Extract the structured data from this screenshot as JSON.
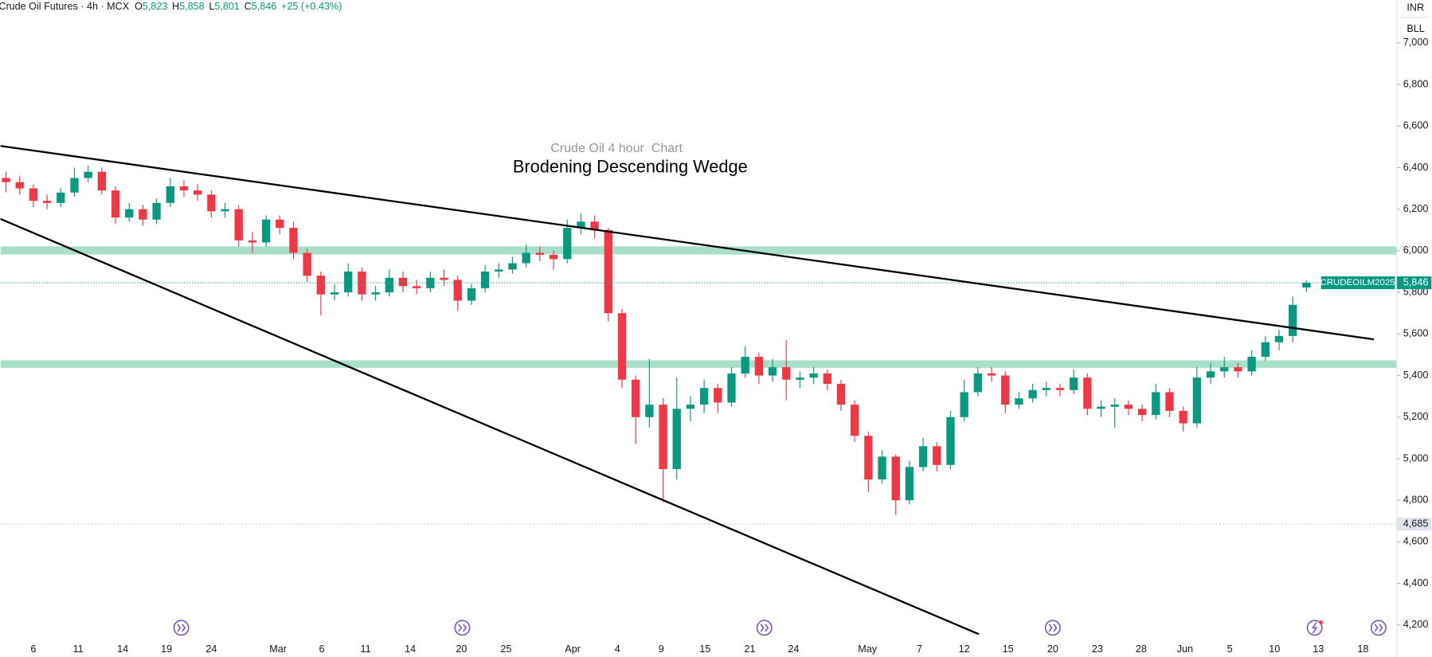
{
  "header": {
    "symbol": "Crude Oil Futures · 4h · MCX",
    "ohlc": [
      {
        "key": "O",
        "value": "5,823"
      },
      {
        "key": "H",
        "value": "5,858"
      },
      {
        "key": "L",
        "value": "5,801"
      },
      {
        "key": "C",
        "value": "5,846"
      }
    ],
    "change": "+25 (+0.43%)",
    "currency": "INR",
    "unit": "BLL"
  },
  "chart_data": {
    "type": "candlestick",
    "subtitle": "Crude Oil 4 hour  Chart",
    "title": "Brodening Descending Wedge",
    "up_color": "#089981",
    "down_color": "#f23645",
    "xlim": [
      -0.4,
      101.6
    ],
    "ylim": [
      4134,
      7206
    ],
    "yticks": [
      {
        "value": 4200,
        "label": "4,200"
      },
      {
        "value": 4400,
        "label": "4,400"
      },
      {
        "value": 4600,
        "label": "4,600"
      },
      {
        "value": 4800,
        "label": "4,800"
      },
      {
        "value": 5000,
        "label": "5,000"
      },
      {
        "value": 5200,
        "label": "5,200"
      },
      {
        "value": 5400,
        "label": "5,400"
      },
      {
        "value": 5600,
        "label": "5,600"
      },
      {
        "value": 5800,
        "label": "5,800"
      },
      {
        "value": 6000,
        "label": "6,000"
      },
      {
        "value": 6200,
        "label": "6,200"
      },
      {
        "value": 6400,
        "label": "6,400"
      },
      {
        "value": 6600,
        "label": "6,600"
      },
      {
        "value": 6800,
        "label": "6,800"
      },
      {
        "value": 7000,
        "label": "7,000"
      }
    ],
    "xticks": [
      {
        "value": 2,
        "label": "6"
      },
      {
        "value": 5.27,
        "label": "11"
      },
      {
        "value": 8.53,
        "label": "14"
      },
      {
        "value": 11.73,
        "label": "19"
      },
      {
        "value": 15,
        "label": "24"
      },
      {
        "value": 19.87,
        "label": "Mar"
      },
      {
        "value": 23.07,
        "label": "6"
      },
      {
        "value": 26.27,
        "label": "11"
      },
      {
        "value": 29.53,
        "label": "14"
      },
      {
        "value": 33.27,
        "label": "20"
      },
      {
        "value": 36.53,
        "label": "25"
      },
      {
        "value": 41.4,
        "label": "Apr"
      },
      {
        "value": 44.67,
        "label": "4"
      },
      {
        "value": 47.87,
        "label": "9"
      },
      {
        "value": 51.07,
        "label": "15"
      },
      {
        "value": 54.33,
        "label": "21"
      },
      {
        "value": 57.53,
        "label": "24"
      },
      {
        "value": 62.93,
        "label": "May"
      },
      {
        "value": 66.73,
        "label": "7"
      },
      {
        "value": 70,
        "label": "12"
      },
      {
        "value": 73.2,
        "label": "15"
      },
      {
        "value": 76.47,
        "label": "20"
      },
      {
        "value": 79.73,
        "label": "23"
      },
      {
        "value": 82.93,
        "label": "28"
      },
      {
        "value": 86.13,
        "label": "Jun"
      },
      {
        "value": 89.4,
        "label": "5"
      },
      {
        "value": 92.67,
        "label": "10"
      },
      {
        "value": 95.87,
        "label": "13"
      },
      {
        "value": 99.13,
        "label": "18"
      }
    ],
    "ohlc": [
      [
        6350,
        6380,
        6280,
        6330
      ],
      [
        6330,
        6360,
        6270,
        6300
      ],
      [
        6300,
        6320,
        6210,
        6240
      ],
      [
        6240,
        6270,
        6200,
        6230
      ],
      [
        6230,
        6300,
        6210,
        6280
      ],
      [
        6280,
        6400,
        6260,
        6350
      ],
      [
        6350,
        6410,
        6330,
        6380
      ],
      [
        6380,
        6400,
        6270,
        6290
      ],
      [
        6290,
        6310,
        6130,
        6160
      ],
      [
        6160,
        6230,
        6140,
        6200
      ],
      [
        6200,
        6220,
        6120,
        6150
      ],
      [
        6150,
        6250,
        6130,
        6230
      ],
      [
        6230,
        6350,
        6210,
        6310
      ],
      [
        6310,
        6340,
        6260,
        6290
      ],
      [
        6290,
        6320,
        6240,
        6270
      ],
      [
        6270,
        6290,
        6160,
        6190
      ],
      [
        6190,
        6230,
        6160,
        6200
      ],
      [
        6200,
        6220,
        6020,
        6050
      ],
      [
        6050,
        6090,
        5990,
        6040
      ],
      [
        6040,
        6170,
        6020,
        6150
      ],
      [
        6150,
        6170,
        6080,
        6110
      ],
      [
        6110,
        6140,
        5960,
        5990
      ],
      [
        5990,
        6010,
        5850,
        5880
      ],
      [
        5880,
        5900,
        5690,
        5790
      ],
      [
        5790,
        5840,
        5760,
        5800
      ],
      [
        5800,
        5940,
        5780,
        5900
      ],
      [
        5900,
        5920,
        5760,
        5790
      ],
      [
        5790,
        5830,
        5760,
        5800
      ],
      [
        5800,
        5910,
        5780,
        5870
      ],
      [
        5870,
        5900,
        5800,
        5830
      ],
      [
        5830,
        5860,
        5790,
        5820
      ],
      [
        5820,
        5900,
        5800,
        5870
      ],
      [
        5870,
        5910,
        5830,
        5860
      ],
      [
        5860,
        5880,
        5710,
        5760
      ],
      [
        5760,
        5840,
        5740,
        5820
      ],
      [
        5820,
        5930,
        5800,
        5900
      ],
      [
        5900,
        5940,
        5870,
        5910
      ],
      [
        5910,
        5970,
        5890,
        5940
      ],
      [
        5940,
        6030,
        5920,
        5990
      ],
      [
        5990,
        6020,
        5950,
        5980
      ],
      [
        5980,
        6000,
        5910,
        5960
      ],
      [
        5960,
        6150,
        5940,
        6110
      ],
      [
        6110,
        6180,
        6080,
        6140
      ],
      [
        6140,
        6170,
        6060,
        6100
      ],
      [
        6100,
        6110,
        5660,
        5700
      ],
      [
        5700,
        5720,
        5340,
        5380
      ],
      [
        5380,
        5400,
        5070,
        5200
      ],
      [
        5200,
        5480,
        5150,
        5260
      ],
      [
        5260,
        5290,
        4790,
        4950
      ],
      [
        4950,
        5390,
        4900,
        5240
      ],
      [
        5240,
        5300,
        5180,
        5260
      ],
      [
        5260,
        5380,
        5220,
        5340
      ],
      [
        5340,
        5360,
        5220,
        5270
      ],
      [
        5270,
        5440,
        5250,
        5410
      ],
      [
        5410,
        5540,
        5390,
        5490
      ],
      [
        5490,
        5510,
        5360,
        5400
      ],
      [
        5400,
        5480,
        5370,
        5440
      ],
      [
        5440,
        5570,
        5280,
        5380
      ],
      [
        5380,
        5420,
        5340,
        5390
      ],
      [
        5390,
        5440,
        5360,
        5410
      ],
      [
        5410,
        5430,
        5330,
        5360
      ],
      [
        5360,
        5380,
        5230,
        5260
      ],
      [
        5260,
        5280,
        5080,
        5110
      ],
      [
        5110,
        5130,
        4840,
        4900
      ],
      [
        4900,
        5040,
        4880,
        5010
      ],
      [
        5010,
        5020,
        4730,
        4800
      ],
      [
        4800,
        4990,
        4780,
        4960
      ],
      [
        4960,
        5100,
        4940,
        5060
      ],
      [
        5060,
        5080,
        4940,
        4970
      ],
      [
        4970,
        5230,
        4950,
        5200
      ],
      [
        5200,
        5380,
        5180,
        5320
      ],
      [
        5320,
        5440,
        5300,
        5410
      ],
      [
        5410,
        5440,
        5370,
        5400
      ],
      [
        5400,
        5420,
        5220,
        5260
      ],
      [
        5260,
        5320,
        5240,
        5290
      ],
      [
        5290,
        5360,
        5270,
        5330
      ],
      [
        5330,
        5370,
        5300,
        5340
      ],
      [
        5340,
        5360,
        5300,
        5330
      ],
      [
        5330,
        5430,
        5310,
        5390
      ],
      [
        5390,
        5410,
        5210,
        5240
      ],
      [
        5240,
        5280,
        5200,
        5250
      ],
      [
        5250,
        5290,
        5150,
        5260
      ],
      [
        5260,
        5280,
        5210,
        5240
      ],
      [
        5240,
        5260,
        5180,
        5210
      ],
      [
        5210,
        5360,
        5190,
        5320
      ],
      [
        5320,
        5340,
        5200,
        5230
      ],
      [
        5230,
        5250,
        5130,
        5170
      ],
      [
        5170,
        5440,
        5150,
        5390
      ],
      [
        5390,
        5460,
        5360,
        5420
      ],
      [
        5420,
        5490,
        5390,
        5440
      ],
      [
        5440,
        5460,
        5390,
        5420
      ],
      [
        5420,
        5520,
        5400,
        5490
      ],
      [
        5490,
        5590,
        5470,
        5560
      ],
      [
        5560,
        5620,
        5520,
        5590
      ],
      [
        5590,
        5780,
        5560,
        5740
      ],
      [
        5823,
        5858,
        5801,
        5846
      ]
    ],
    "zones": [
      {
        "low": 5982,
        "high": 6021,
        "color": "#a8dfc9"
      },
      {
        "low": 5437,
        "high": 5473,
        "color": "#a8dfc9"
      }
    ],
    "trendlines": [
      {
        "start": [
          -0.4,
          6504
        ],
        "end": [
          99.93,
          5574
        ]
      },
      {
        "start": [
          -0.4,
          6153
        ],
        "end": [
          71.07,
          4156
        ]
      }
    ],
    "price_line": {
      "name": "CRUDEOILM2025",
      "value": 5846,
      "label": "5,846",
      "color": "#089981"
    },
    "low_line": {
      "value": 4685,
      "label": "4,685"
    }
  }
}
